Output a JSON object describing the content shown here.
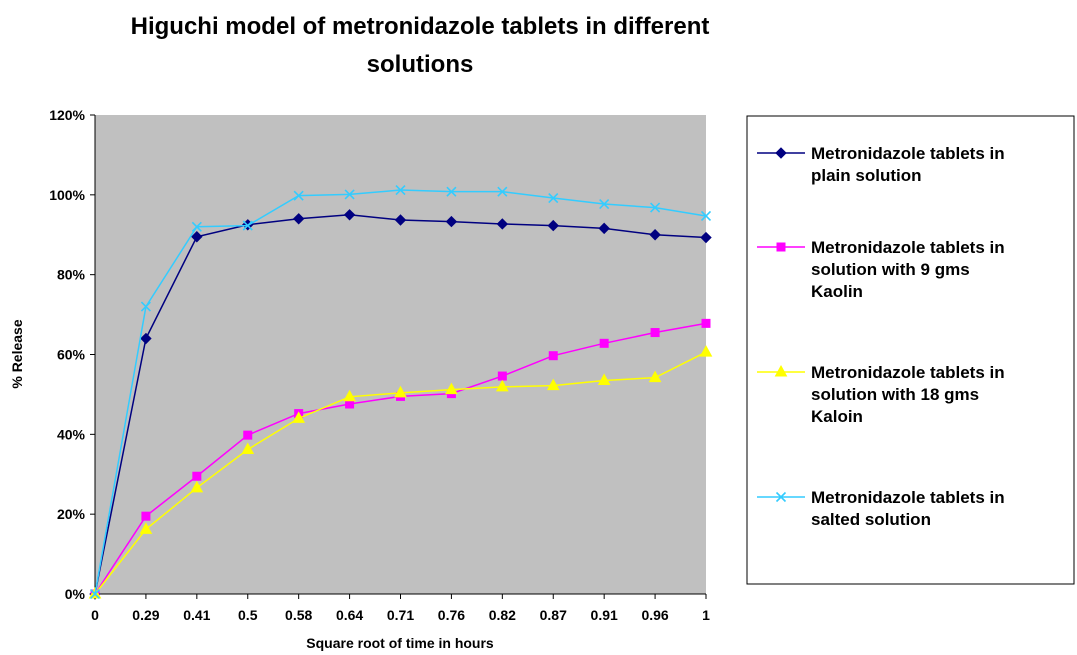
{
  "chart_data": {
    "type": "line",
    "title": [
      "Higuchi model of metronidazole tablets in different",
      "solutions"
    ],
    "xlabel": "Square root of time in hours",
    "ylabel": "% Release",
    "categories": [
      "0",
      "0.29",
      "0.41",
      "0.5",
      "0.58",
      "0.64",
      "0.71",
      "0.76",
      "0.82",
      "0.87",
      "0.91",
      "0.96",
      "1"
    ],
    "ylim": [
      0,
      120
    ],
    "yticks": [
      "0%",
      "20%",
      "40%",
      "60%",
      "80%",
      "100%",
      "120%"
    ],
    "plot_background": "#c0c0c0",
    "grid": false,
    "legend_position": "right",
    "series": [
      {
        "name_lines": [
          "Metronidazole tablets in",
          "plain solution"
        ],
        "color": "#000080",
        "marker": "diamond",
        "values": [
          0,
          64,
          89.5,
          92.5,
          94,
          95,
          93.7,
          93.3,
          92.7,
          92.3,
          91.6,
          90,
          89.3
        ]
      },
      {
        "name_lines": [
          "Metronidazole tablets in",
          "solution with 9 gms",
          "Kaolin"
        ],
        "color": "#ff00ff",
        "marker": "square",
        "values": [
          0,
          19.5,
          29.5,
          39.8,
          45.2,
          47.6,
          49.5,
          50.2,
          54.6,
          59.7,
          62.8,
          65.5,
          67.8
        ]
      },
      {
        "name_lines": [
          "Metronidazole tablets in",
          "solution with 18 gms",
          "Kaloin"
        ],
        "color": "#ffff00",
        "marker": "triangle",
        "values": [
          0,
          16.2,
          26.6,
          36.2,
          44,
          49.4,
          50.4,
          51.2,
          51.9,
          52.2,
          53.5,
          54.2,
          60.6
        ]
      },
      {
        "name_lines": [
          "Metronidazole tablets in",
          "salted solution"
        ],
        "color": "#33ccff",
        "marker": "x",
        "values": [
          0,
          72,
          92,
          92.3,
          99.8,
          100.1,
          101.2,
          100.8,
          100.8,
          99.2,
          97.7,
          96.8,
          94.7
        ]
      }
    ]
  }
}
